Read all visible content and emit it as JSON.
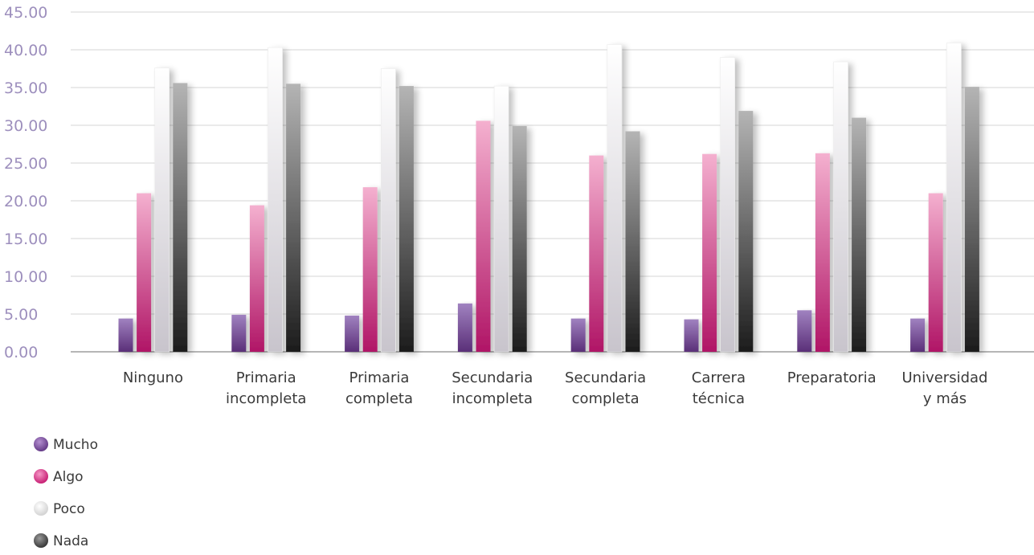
{
  "chart_data": {
    "type": "bar",
    "categories": [
      [
        "Ninguno"
      ],
      [
        "Primaria",
        "incompleta"
      ],
      [
        "Primaria",
        "completa"
      ],
      [
        "Secundaria",
        "incompleta"
      ],
      [
        "Secundaria",
        "completa"
      ],
      [
        "Carrera",
        "técnica"
      ],
      [
        "Preparatoria"
      ],
      [
        "Universidad",
        "y más"
      ]
    ],
    "series": [
      {
        "name": "Mucho",
        "color": "#7a4f96",
        "values": [
          4.4,
          4.9,
          4.8,
          6.4,
          4.4,
          4.3,
          5.5,
          4.4
        ]
      },
      {
        "name": "Algo",
        "color": "#d43c88",
        "values": [
          21.0,
          19.4,
          21.8,
          30.6,
          26.0,
          26.2,
          26.3,
          21.0
        ]
      },
      {
        "name": "Poco",
        "color": "#e4e4e4",
        "values": [
          37.6,
          40.3,
          37.5,
          35.2,
          40.7,
          39.0,
          38.4,
          40.9
        ]
      },
      {
        "name": "Nada",
        "color": "#6d6d6d",
        "values": [
          35.6,
          35.5,
          35.2,
          29.9,
          29.2,
          31.9,
          31.0,
          35.1
        ]
      }
    ],
    "yticks": [
      "0.00",
      "5.00",
      "10.00",
      "15.00",
      "20.00",
      "25.00",
      "30.00",
      "35.00",
      "40.00",
      "45.00"
    ],
    "ylim": [
      0,
      45
    ],
    "grid": true,
    "legend_position": "bottom-left",
    "title": "",
    "xlabel": "",
    "ylabel": ""
  }
}
